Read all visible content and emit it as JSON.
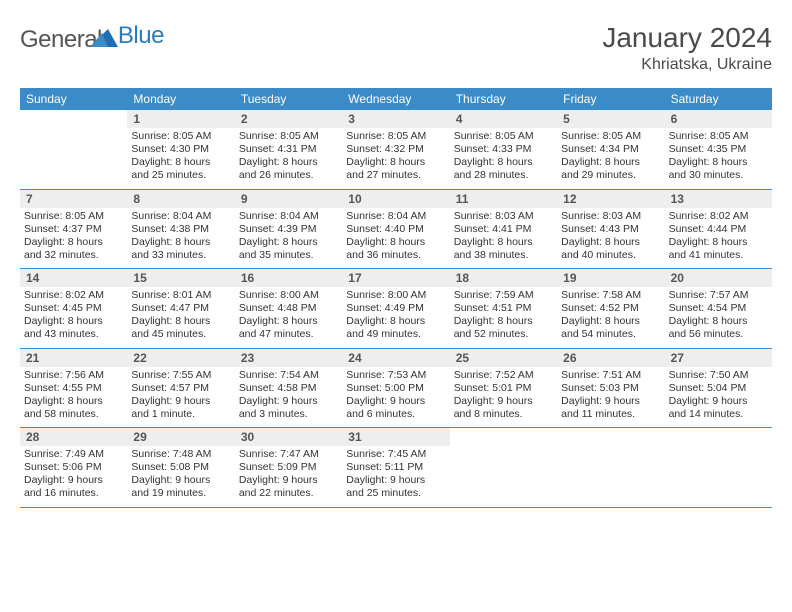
{
  "brand": {
    "general": "General",
    "blue": "Blue"
  },
  "title": "January 2024",
  "location": "Khriatska, Ukraine",
  "day_names": [
    "Sunday",
    "Monday",
    "Tuesday",
    "Wednesday",
    "Thursday",
    "Friday",
    "Saturday"
  ],
  "colors": {
    "header_bg": "#3b8bc9",
    "header_text": "#ffffff",
    "daynum_bg": "#eeeeee",
    "border": "#3b8bc9",
    "text": "#333333",
    "brand_blue": "#2a7bbf"
  },
  "weeks": [
    [
      {
        "n": "",
        "sr": "",
        "ss": "",
        "d1": "",
        "d2": ""
      },
      {
        "n": "1",
        "sr": "Sunrise: 8:05 AM",
        "ss": "Sunset: 4:30 PM",
        "d1": "Daylight: 8 hours",
        "d2": "and 25 minutes."
      },
      {
        "n": "2",
        "sr": "Sunrise: 8:05 AM",
        "ss": "Sunset: 4:31 PM",
        "d1": "Daylight: 8 hours",
        "d2": "and 26 minutes."
      },
      {
        "n": "3",
        "sr": "Sunrise: 8:05 AM",
        "ss": "Sunset: 4:32 PM",
        "d1": "Daylight: 8 hours",
        "d2": "and 27 minutes."
      },
      {
        "n": "4",
        "sr": "Sunrise: 8:05 AM",
        "ss": "Sunset: 4:33 PM",
        "d1": "Daylight: 8 hours",
        "d2": "and 28 minutes."
      },
      {
        "n": "5",
        "sr": "Sunrise: 8:05 AM",
        "ss": "Sunset: 4:34 PM",
        "d1": "Daylight: 8 hours",
        "d2": "and 29 minutes."
      },
      {
        "n": "6",
        "sr": "Sunrise: 8:05 AM",
        "ss": "Sunset: 4:35 PM",
        "d1": "Daylight: 8 hours",
        "d2": "and 30 minutes."
      }
    ],
    [
      {
        "n": "7",
        "sr": "Sunrise: 8:05 AM",
        "ss": "Sunset: 4:37 PM",
        "d1": "Daylight: 8 hours",
        "d2": "and 32 minutes."
      },
      {
        "n": "8",
        "sr": "Sunrise: 8:04 AM",
        "ss": "Sunset: 4:38 PM",
        "d1": "Daylight: 8 hours",
        "d2": "and 33 minutes."
      },
      {
        "n": "9",
        "sr": "Sunrise: 8:04 AM",
        "ss": "Sunset: 4:39 PM",
        "d1": "Daylight: 8 hours",
        "d2": "and 35 minutes."
      },
      {
        "n": "10",
        "sr": "Sunrise: 8:04 AM",
        "ss": "Sunset: 4:40 PM",
        "d1": "Daylight: 8 hours",
        "d2": "and 36 minutes."
      },
      {
        "n": "11",
        "sr": "Sunrise: 8:03 AM",
        "ss": "Sunset: 4:41 PM",
        "d1": "Daylight: 8 hours",
        "d2": "and 38 minutes."
      },
      {
        "n": "12",
        "sr": "Sunrise: 8:03 AM",
        "ss": "Sunset: 4:43 PM",
        "d1": "Daylight: 8 hours",
        "d2": "and 40 minutes."
      },
      {
        "n": "13",
        "sr": "Sunrise: 8:02 AM",
        "ss": "Sunset: 4:44 PM",
        "d1": "Daylight: 8 hours",
        "d2": "and 41 minutes."
      }
    ],
    [
      {
        "n": "14",
        "sr": "Sunrise: 8:02 AM",
        "ss": "Sunset: 4:45 PM",
        "d1": "Daylight: 8 hours",
        "d2": "and 43 minutes."
      },
      {
        "n": "15",
        "sr": "Sunrise: 8:01 AM",
        "ss": "Sunset: 4:47 PM",
        "d1": "Daylight: 8 hours",
        "d2": "and 45 minutes."
      },
      {
        "n": "16",
        "sr": "Sunrise: 8:00 AM",
        "ss": "Sunset: 4:48 PM",
        "d1": "Daylight: 8 hours",
        "d2": "and 47 minutes."
      },
      {
        "n": "17",
        "sr": "Sunrise: 8:00 AM",
        "ss": "Sunset: 4:49 PM",
        "d1": "Daylight: 8 hours",
        "d2": "and 49 minutes."
      },
      {
        "n": "18",
        "sr": "Sunrise: 7:59 AM",
        "ss": "Sunset: 4:51 PM",
        "d1": "Daylight: 8 hours",
        "d2": "and 52 minutes."
      },
      {
        "n": "19",
        "sr": "Sunrise: 7:58 AM",
        "ss": "Sunset: 4:52 PM",
        "d1": "Daylight: 8 hours",
        "d2": "and 54 minutes."
      },
      {
        "n": "20",
        "sr": "Sunrise: 7:57 AM",
        "ss": "Sunset: 4:54 PM",
        "d1": "Daylight: 8 hours",
        "d2": "and 56 minutes."
      }
    ],
    [
      {
        "n": "21",
        "sr": "Sunrise: 7:56 AM",
        "ss": "Sunset: 4:55 PM",
        "d1": "Daylight: 8 hours",
        "d2": "and 58 minutes."
      },
      {
        "n": "22",
        "sr": "Sunrise: 7:55 AM",
        "ss": "Sunset: 4:57 PM",
        "d1": "Daylight: 9 hours",
        "d2": "and 1 minute."
      },
      {
        "n": "23",
        "sr": "Sunrise: 7:54 AM",
        "ss": "Sunset: 4:58 PM",
        "d1": "Daylight: 9 hours",
        "d2": "and 3 minutes."
      },
      {
        "n": "24",
        "sr": "Sunrise: 7:53 AM",
        "ss": "Sunset: 5:00 PM",
        "d1": "Daylight: 9 hours",
        "d2": "and 6 minutes."
      },
      {
        "n": "25",
        "sr": "Sunrise: 7:52 AM",
        "ss": "Sunset: 5:01 PM",
        "d1": "Daylight: 9 hours",
        "d2": "and 8 minutes."
      },
      {
        "n": "26",
        "sr": "Sunrise: 7:51 AM",
        "ss": "Sunset: 5:03 PM",
        "d1": "Daylight: 9 hours",
        "d2": "and 11 minutes."
      },
      {
        "n": "27",
        "sr": "Sunrise: 7:50 AM",
        "ss": "Sunset: 5:04 PM",
        "d1": "Daylight: 9 hours",
        "d2": "and 14 minutes."
      }
    ],
    [
      {
        "n": "28",
        "sr": "Sunrise: 7:49 AM",
        "ss": "Sunset: 5:06 PM",
        "d1": "Daylight: 9 hours",
        "d2": "and 16 minutes."
      },
      {
        "n": "29",
        "sr": "Sunrise: 7:48 AM",
        "ss": "Sunset: 5:08 PM",
        "d1": "Daylight: 9 hours",
        "d2": "and 19 minutes."
      },
      {
        "n": "30",
        "sr": "Sunrise: 7:47 AM",
        "ss": "Sunset: 5:09 PM",
        "d1": "Daylight: 9 hours",
        "d2": "and 22 minutes."
      },
      {
        "n": "31",
        "sr": "Sunrise: 7:45 AM",
        "ss": "Sunset: 5:11 PM",
        "d1": "Daylight: 9 hours",
        "d2": "and 25 minutes."
      },
      {
        "n": "",
        "sr": "",
        "ss": "",
        "d1": "",
        "d2": ""
      },
      {
        "n": "",
        "sr": "",
        "ss": "",
        "d1": "",
        "d2": ""
      },
      {
        "n": "",
        "sr": "",
        "ss": "",
        "d1": "",
        "d2": ""
      }
    ]
  ]
}
